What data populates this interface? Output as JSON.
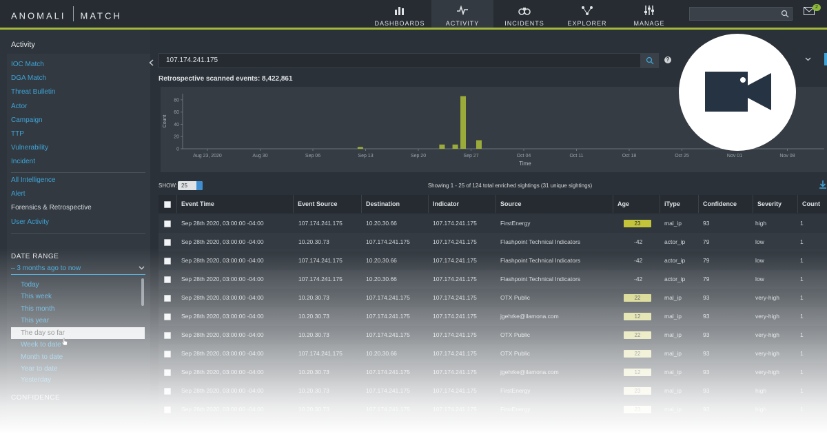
{
  "brand": {
    "left": "ANOMALI",
    "right": "MATCH"
  },
  "nav": [
    {
      "label": "DASHBOARDS",
      "icon": "bar-chart-icon"
    },
    {
      "label": "ACTIVITY",
      "icon": "pulse-icon",
      "active": true
    },
    {
      "label": "INCIDENTS",
      "icon": "binoculars-icon"
    },
    {
      "label": "EXPLORER",
      "icon": "network-icon"
    },
    {
      "label": "MANAGE",
      "icon": "sliders-icon"
    }
  ],
  "notifications": {
    "count": "2"
  },
  "sidebar": {
    "title": "Activity",
    "links": [
      "IOC Match",
      "DGA Match",
      "Threat Bulletin",
      "Actor",
      "Campaign",
      "TTP",
      "Vulnerability",
      "Incident"
    ],
    "links2": [
      {
        "label": "All Intelligence"
      },
      {
        "label": "Alert"
      },
      {
        "label": "Forensics & Retrospective",
        "active": true
      },
      {
        "label": "User Activity"
      }
    ],
    "date_range": {
      "title": "DATE RANGE",
      "value": "– 3 months ago to now",
      "options": [
        "Today",
        "This week",
        "This month",
        "This year",
        "The day so far",
        "Week to date",
        "Month to date",
        "Year to date",
        "Yesterday"
      ],
      "selected": "The day so far"
    },
    "confidence_title": "CONFIDENCE"
  },
  "search": {
    "value": "107.174.241.175"
  },
  "retro_label": "Retrospective scanned events: 8,422,861",
  "chart_data": {
    "type": "bar",
    "ylabel": "Count",
    "xlabel": "Time",
    "ylim": [
      0,
      90
    ],
    "yticks": [
      0,
      20,
      40,
      60,
      80
    ],
    "xticks": [
      "Aug 23, 2020",
      "Aug 30",
      "Sep 06",
      "Sep 13",
      "Sep 20",
      "Sep 27",
      "Oct 04",
      "Oct 11",
      "Oct 18",
      "Oct 25",
      "Nov 01",
      "Nov 08"
    ],
    "bars": [
      {
        "pos": 2.9,
        "value": 3
      },
      {
        "pos": 4.45,
        "value": 7
      },
      {
        "pos": 4.7,
        "value": 7
      },
      {
        "pos": 4.85,
        "value": 86
      },
      {
        "pos": 5.15,
        "value": 14
      }
    ],
    "color": "#9bab3a"
  },
  "show": {
    "label": "SHOW:",
    "value": "25"
  },
  "showing_text": "Showing 1 - 25 of 124 total enriched sightings (31 unique sightings)",
  "table": {
    "columns": [
      "Event Time",
      "Event Source",
      "Destination",
      "Indicator",
      "Source",
      "Age",
      "iType",
      "Confidence",
      "Severity",
      "Count"
    ],
    "rows": [
      {
        "time": "Sep 28th 2020, 03:00:00 -04:00",
        "event_source": "107.174.241.175",
        "destination": "10.20.30.66",
        "indicator": "107.174.241.175",
        "source": "FirstEnergy",
        "age": "23",
        "age_badge": true,
        "age_color": "#c4c43a",
        "itype": "mal_ip",
        "confidence": "93",
        "severity": "high",
        "count": "1"
      },
      {
        "time": "Sep 28th 2020, 03:00:00 -04:00",
        "event_source": "10.20.30.73",
        "destination": "107.174.241.175",
        "indicator": "107.174.241.175",
        "source": "Flashpoint Technical Indicators",
        "age": "-42",
        "age_badge": false,
        "itype": "actor_ip",
        "confidence": "79",
        "severity": "low",
        "count": "1"
      },
      {
        "time": "Sep 28th 2020, 03:00:00 -04:00",
        "event_source": "107.174.241.175",
        "destination": "10.20.30.66",
        "indicator": "107.174.241.175",
        "source": "Flashpoint Technical Indicators",
        "age": "-42",
        "age_badge": false,
        "itype": "actor_ip",
        "confidence": "79",
        "severity": "low",
        "count": "1"
      },
      {
        "time": "Sep 28th 2020, 03:00:00 -04:00",
        "event_source": "107.174.241.175",
        "destination": "10.20.30.66",
        "indicator": "107.174.241.175",
        "source": "Flashpoint Technical Indicators",
        "age": "-42",
        "age_badge": false,
        "itype": "actor_ip",
        "confidence": "79",
        "severity": "low",
        "count": "1"
      },
      {
        "time": "Sep 28th 2020, 03:00:00 -04:00",
        "event_source": "10.20.30.73",
        "destination": "107.174.241.175",
        "indicator": "107.174.241.175",
        "source": "OTX Public",
        "age": "22",
        "age_badge": true,
        "age_color": "#cfd17a",
        "itype": "mal_ip",
        "confidence": "93",
        "severity": "very-high",
        "count": "1"
      },
      {
        "time": "Sep 28th 2020, 03:00:00 -04:00",
        "event_source": "10.20.30.73",
        "destination": "107.174.241.175",
        "indicator": "107.174.241.175",
        "source": "jgehrke@ilamona.com",
        "age": "12",
        "age_badge": true,
        "age_color": "#d8d98a",
        "itype": "mal_ip",
        "confidence": "93",
        "severity": "very-high",
        "count": "1"
      },
      {
        "time": "Sep 28th 2020, 03:00:00 -04:00",
        "event_source": "10.20.30.73",
        "destination": "107.174.241.175",
        "indicator": "107.174.241.175",
        "source": "OTX Public",
        "age": "22",
        "age_badge": true,
        "age_color": "#dcdc98",
        "itype": "mal_ip",
        "confidence": "93",
        "severity": "very-high",
        "count": "1"
      },
      {
        "time": "Sep 28th 2020, 03:00:00 -04:00",
        "event_source": "107.174.241.175",
        "destination": "10.20.30.66",
        "indicator": "107.174.241.175",
        "source": "OTX Public",
        "age": "22",
        "age_badge": true,
        "age_color": "#e0e0a6",
        "itype": "mal_ip",
        "confidence": "93",
        "severity": "very-high",
        "count": "1"
      },
      {
        "time": "Sep 28th 2020, 03:00:00 -04:00",
        "event_source": "10.20.30.73",
        "destination": "107.174.241.175",
        "indicator": "107.174.241.175",
        "source": "jgehrke@ilamona.com",
        "age": "12",
        "age_badge": true,
        "age_color": "#e4e4b2",
        "itype": "mal_ip",
        "confidence": "93",
        "severity": "very-high",
        "count": "1"
      },
      {
        "time": "Sep 28th 2020, 03:00:00 -04:00",
        "event_source": "10.20.30.73",
        "destination": "107.174.241.175",
        "indicator": "107.174.241.175",
        "source": "FirstEnergy",
        "age": "23",
        "age_badge": true,
        "age_color": "#e8e8be",
        "itype": "mal_ip",
        "confidence": "93",
        "severity": "high",
        "count": "1"
      },
      {
        "time": "Sep 28th 2020, 03:00:00 -04:00",
        "event_source": "10.20.30.73",
        "destination": "107.174.241.175",
        "indicator": "107.174.241.175",
        "source": "FirstEnergy",
        "age": "23",
        "age_badge": true,
        "age_color": "#ececca",
        "itype": "mal_ip",
        "confidence": "93",
        "severity": "high",
        "count": "1"
      }
    ]
  },
  "overlay_icon": "video-camera-icon"
}
